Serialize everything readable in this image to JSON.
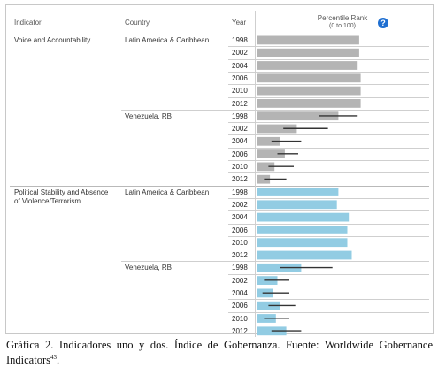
{
  "headers": {
    "indicator": "Indicator",
    "country": "Country",
    "year": "Year",
    "rank_line1": "Percentile Rank",
    "rank_line2": "(0 to 100)"
  },
  "help_icon": "question-icon",
  "colors": {
    "voice_bar": "#b4b4b4",
    "stability_bar": "#92cce3",
    "error_bar": "#333333"
  },
  "chart_data": {
    "type": "bar",
    "orientation": "horizontal",
    "xlim": [
      0,
      100
    ],
    "groups": [
      {
        "indicator": "Voice and Accountability",
        "series": [
          {
            "name": "Latin America & Caribbean",
            "years": [
              "1998",
              "2002",
              "2004",
              "2006",
              "2010",
              "2012"
            ],
            "values": [
              69,
              69,
              68,
              70,
              70,
              70
            ],
            "error_low": null,
            "error_high": null
          },
          {
            "name": "Venezuela, RB",
            "years": [
              "1998",
              "2002",
              "2004",
              "2006",
              "2010",
              "2012"
            ],
            "values": [
              55,
              27,
              16,
              19,
              12,
              9
            ],
            "error_low": [
              42,
              18,
              10,
              14,
              8,
              5
            ],
            "error_high": [
              68,
              48,
              30,
              28,
              25,
              20
            ]
          }
        ]
      },
      {
        "indicator": "Political Stability and Absence of Violence/Terrorism",
        "series": [
          {
            "name": "Latin America & Caribbean",
            "years": [
              "1998",
              "2002",
              "2004",
              "2006",
              "2010",
              "2012"
            ],
            "values": [
              55,
              54,
              62,
              61,
              61,
              64
            ],
            "error_low": null,
            "error_high": null
          },
          {
            "name": "Venezuela, RB",
            "years": [
              "1998",
              "2002",
              "2004",
              "2006",
              "2010",
              "2012"
            ],
            "values": [
              30,
              14,
              11,
              16,
              13,
              20
            ],
            "error_low": [
              16,
              5,
              4,
              8,
              5,
              10
            ],
            "error_high": [
              51,
              22,
              22,
              26,
              22,
              30
            ]
          }
        ]
      }
    ]
  },
  "caption": {
    "text": "Gráfica 2. Indicadores uno y dos. Índice de Gobernanza. Fuente: Worldwide Gobernance Indicators",
    "footnote": "43",
    "end": "."
  }
}
